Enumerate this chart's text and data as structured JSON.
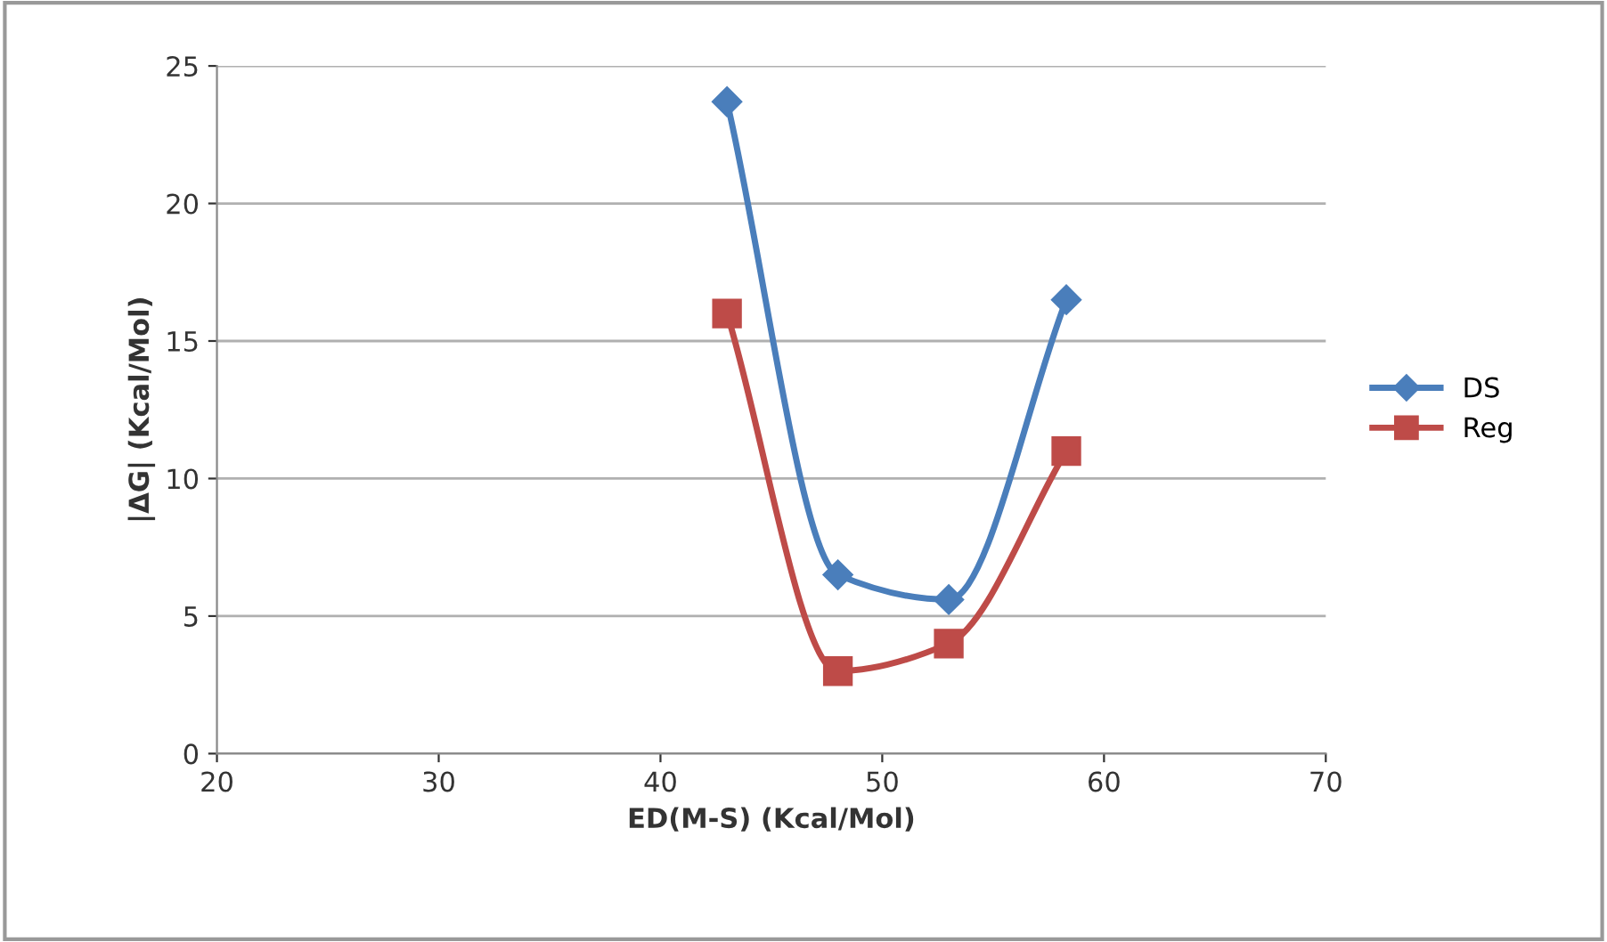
{
  "chart_data": {
    "type": "line",
    "xlabel": "ED(M-S) (Kcal/Mol)",
    "ylabel": "|ΔG| (Kcal/Mol)",
    "x": [
      43,
      48,
      53,
      58.3
    ],
    "series": [
      {
        "name": "DS",
        "color": "#4a7ebb",
        "values": [
          23.7,
          6.5,
          5.6,
          16.5
        ],
        "marker": "diamond"
      },
      {
        "name": "Reg",
        "color": "#be4b48",
        "values": [
          16,
          3,
          4,
          11
        ],
        "marker": "square"
      }
    ],
    "xlim": [
      20,
      70
    ],
    "xticks": [
      20,
      30,
      40,
      50,
      60,
      70
    ],
    "ylim": [
      0,
      25
    ],
    "yticks": [
      0,
      5,
      10,
      15,
      20,
      25
    ],
    "grid": "y",
    "legend": "right",
    "line_style": "solid"
  }
}
